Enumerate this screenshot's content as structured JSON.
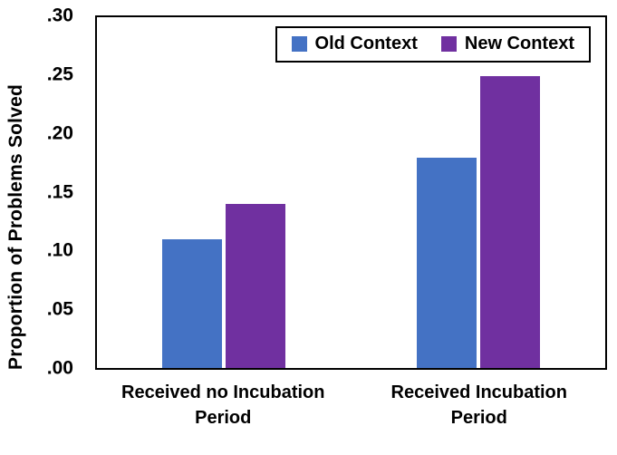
{
  "chart_data": {
    "type": "bar",
    "title": "",
    "ylabel": "Proportion of Problems Solved",
    "xlabel": "",
    "ylim": [
      0,
      0.3
    ],
    "grid": false,
    "legend_position": "top-right inside plot",
    "frame": "full black rectangle border",
    "categories": [
      "Received no Incubation Period",
      "Received Incubation Period"
    ],
    "series": [
      {
        "name": "Old Context",
        "color": "#4472C4",
        "values": [
          0.11,
          0.18
        ]
      },
      {
        "name": "New Context",
        "color": "#7030A0",
        "values": [
          0.14,
          0.25
        ]
      }
    ],
    "yticks": [
      {
        "label": ".30",
        "value": 0.3
      },
      {
        "label": ".25",
        "value": 0.25
      },
      {
        "label": ".20",
        "value": 0.2
      },
      {
        "label": ".15",
        "value": 0.15
      },
      {
        "label": ".10",
        "value": 0.1
      },
      {
        "label": ".05",
        "value": 0.05
      },
      {
        "label": ".00",
        "value": 0.0
      }
    ]
  },
  "colors": {
    "axis": "#000000",
    "text": "#000000",
    "background": "#ffffff"
  }
}
